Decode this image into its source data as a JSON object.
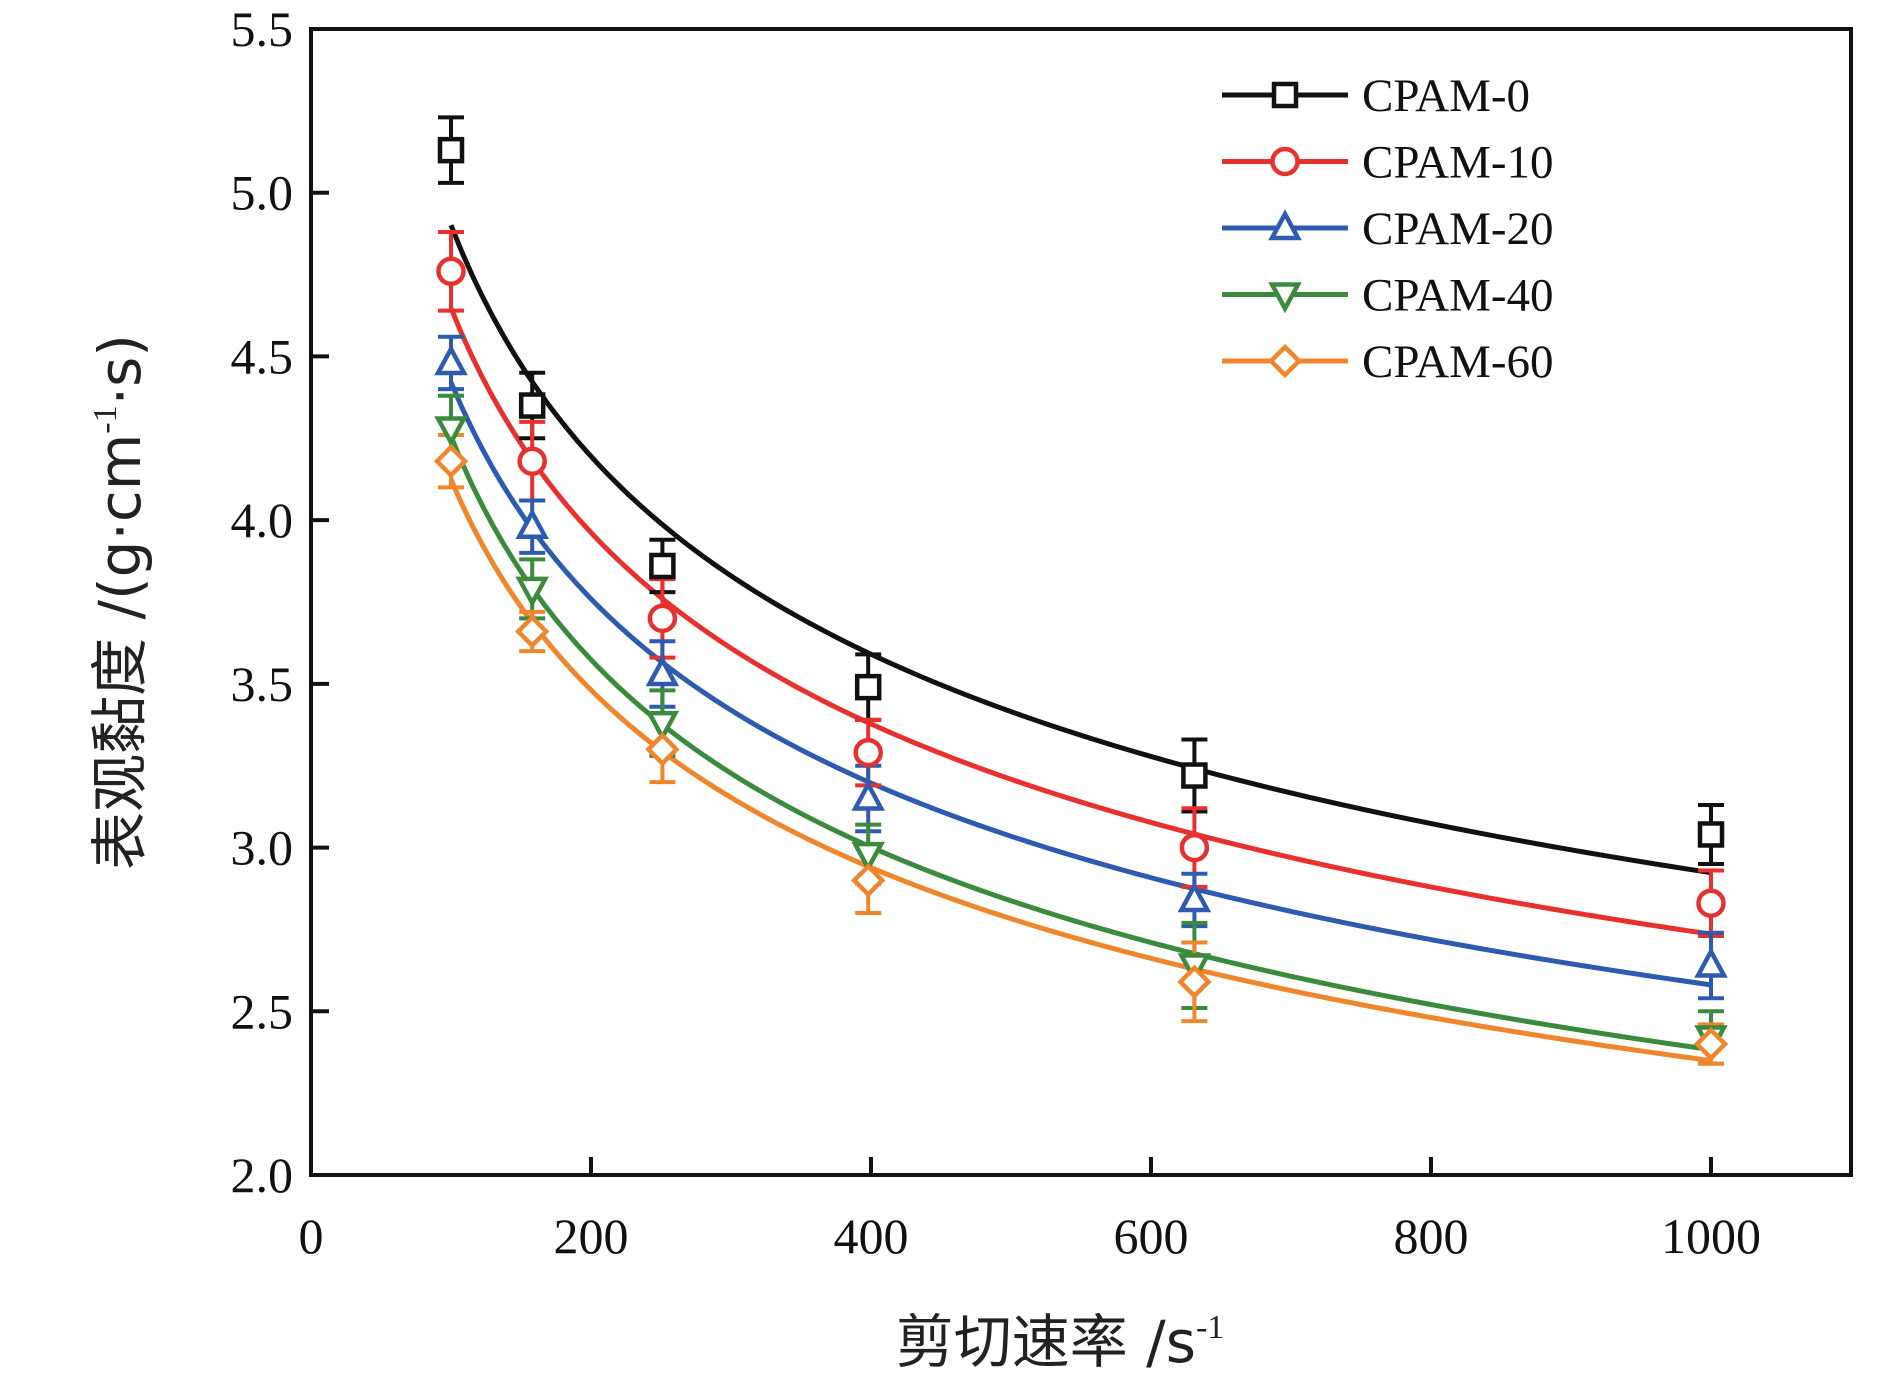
{
  "chart_data": {
    "type": "line",
    "xlim": [
      0,
      1100
    ],
    "ylim": [
      2.0,
      5.5
    ],
    "x_ticks": [
      "0",
      "200",
      "400",
      "600",
      "800",
      "1000"
    ],
    "y_ticks": [
      "2.0",
      "2.5",
      "3.0",
      "3.5",
      "4.0",
      "4.5",
      "5.0",
      "5.5"
    ],
    "xlabel": {
      "main": "剪切速率 /s",
      "sup": "-1"
    },
    "ylabel": {
      "part1": "表观黏度 /(g·cm",
      "sup": "-1",
      "part2": "·s)"
    },
    "legend_position": "top-right",
    "grid": false,
    "x": [
      100,
      158,
      251,
      398,
      631,
      1000
    ],
    "series": [
      {
        "name": "CPAM-0",
        "marker": "square",
        "color": "#111111",
        "values": [
          5.13,
          4.35,
          3.86,
          3.49,
          3.22,
          3.04
        ],
        "errors": [
          0.1,
          0.1,
          0.08,
          0.1,
          0.11,
          0.09
        ]
      },
      {
        "name": "CPAM-10",
        "marker": "circle",
        "color": "#e8312f",
        "values": [
          4.76,
          4.18,
          3.7,
          3.29,
          3.0,
          2.83
        ],
        "errors": [
          0.12,
          0.12,
          0.12,
          0.1,
          0.12,
          0.1
        ]
      },
      {
        "name": "CPAM-20",
        "marker": "triangle-up",
        "color": "#2e5bb0",
        "values": [
          4.48,
          3.98,
          3.53,
          3.15,
          2.84,
          2.64
        ],
        "errors": [
          0.08,
          0.08,
          0.1,
          0.1,
          0.08,
          0.1
        ]
      },
      {
        "name": "CPAM-40",
        "marker": "triangle-down",
        "color": "#3c8a3e",
        "values": [
          4.28,
          3.79,
          3.38,
          2.98,
          2.64,
          2.42
        ],
        "errors": [
          0.1,
          0.09,
          0.1,
          0.09,
          0.13,
          0.08
        ]
      },
      {
        "name": "CPAM-60",
        "marker": "diamond",
        "color": "#f0862b",
        "values": [
          4.18,
          3.66,
          3.3,
          2.9,
          2.59,
          2.4
        ],
        "errors": [
          0.08,
          0.06,
          0.1,
          0.1,
          0.12,
          0.06
        ]
      }
    ]
  }
}
